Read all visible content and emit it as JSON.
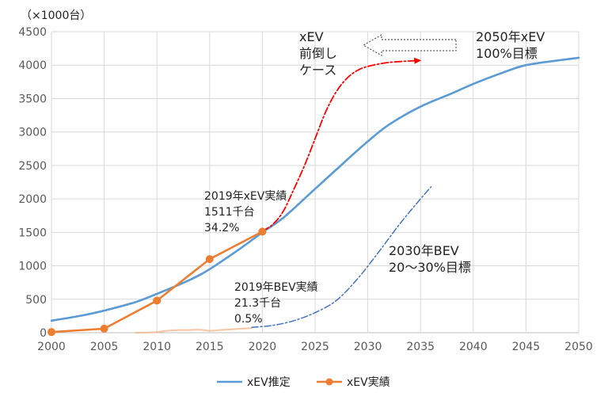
{
  "chart_data": {
    "type": "line",
    "ylabel": "（×1000台）",
    "xlim": [
      2000,
      2050
    ],
    "ylim": [
      0,
      4500
    ],
    "xticks": [
      2000,
      2005,
      2010,
      2015,
      2020,
      2025,
      2030,
      2035,
      2040,
      2045,
      2050
    ],
    "yticks": [
      0,
      500,
      1000,
      1500,
      2000,
      2500,
      3000,
      3500,
      4000,
      4500
    ],
    "grid": true,
    "legend_position": "bottom",
    "series": [
      {
        "name": "xEV推定",
        "color": "#5b9bd5",
        "style": "solid",
        "points": [
          [
            2000,
            180
          ],
          [
            2003,
            260
          ],
          [
            2005,
            330
          ],
          [
            2008,
            460
          ],
          [
            2010,
            580
          ],
          [
            2013,
            780
          ],
          [
            2015,
            950
          ],
          [
            2018,
            1270
          ],
          [
            2020,
            1500
          ],
          [
            2022,
            1720
          ],
          [
            2025,
            2150
          ],
          [
            2028,
            2580
          ],
          [
            2030,
            2860
          ],
          [
            2032,
            3110
          ],
          [
            2035,
            3380
          ],
          [
            2038,
            3580
          ],
          [
            2040,
            3720
          ],
          [
            2043,
            3900
          ],
          [
            2045,
            4000
          ],
          [
            2048,
            4070
          ],
          [
            2050,
            4110
          ]
        ]
      },
      {
        "name": "xEV実績",
        "color": "#ed7d31",
        "style": "solid",
        "markers": true,
        "points": [
          [
            2000,
            10
          ],
          [
            2005,
            60
          ],
          [
            2010,
            480
          ],
          [
            2015,
            1100
          ],
          [
            2020,
            1511
          ]
        ]
      }
    ],
    "unlabeled_series": [
      {
        "color": "#f4b183",
        "style": "faint",
        "points": [
          [
            2008,
            0
          ],
          [
            2010,
            10
          ],
          [
            2011,
            30
          ],
          [
            2012,
            40
          ],
          [
            2013,
            40
          ],
          [
            2014,
            45
          ],
          [
            2015,
            30
          ],
          [
            2016,
            40
          ],
          [
            2017,
            50
          ],
          [
            2018,
            60
          ],
          [
            2019,
            70
          ]
        ]
      },
      {
        "color": "#ff0000",
        "style": "dashdot",
        "points": [
          [
            2020,
            1520
          ],
          [
            2021,
            1620
          ],
          [
            2022,
            1820
          ],
          [
            2023,
            2150
          ],
          [
            2024,
            2500
          ],
          [
            2025,
            2900
          ],
          [
            2026,
            3300
          ],
          [
            2027,
            3600
          ],
          [
            2028,
            3800
          ],
          [
            2029,
            3920
          ],
          [
            2030,
            3980
          ],
          [
            2032,
            4040
          ],
          [
            2035,
            4070
          ]
        ]
      },
      {
        "color": "#4472c4",
        "style": "dashdot",
        "points": [
          [
            2019,
            80
          ],
          [
            2021,
            110
          ],
          [
            2023,
            180
          ],
          [
            2025,
            300
          ],
          [
            2027,
            480
          ],
          [
            2029,
            800
          ],
          [
            2031,
            1200
          ],
          [
            2033,
            1620
          ],
          [
            2035,
            2000
          ],
          [
            2036,
            2180
          ]
        ]
      }
    ],
    "annotations": [
      {
        "id": "xev2019",
        "lines": [
          "2019年xEV実績",
          "1511千台",
          "34.2%"
        ]
      },
      {
        "id": "bev2019",
        "lines": [
          "2019年BEV実績",
          "21.3千台",
          "0.5%"
        ]
      },
      {
        "id": "early",
        "lines": [
          "xEV",
          "前倒し",
          "ケース"
        ]
      },
      {
        "id": "target2050",
        "lines": [
          "2050年xEV",
          "100%目標"
        ]
      },
      {
        "id": "bev2030",
        "lines": [
          "2030年BEV",
          "20〜30%目標"
        ]
      }
    ]
  }
}
